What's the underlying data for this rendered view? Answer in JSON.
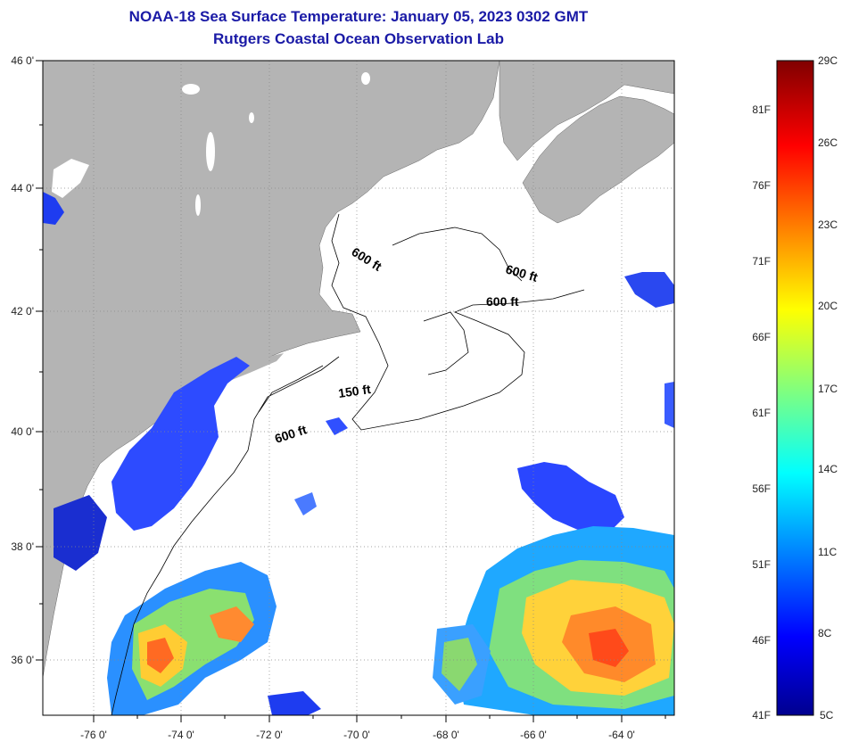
{
  "title": "NOAA-18 Sea Surface Temperature:  January 05, 2023 0302 GMT",
  "subtitle": "Rutgers Coastal Ocean Observation Lab",
  "lon_labels": [
    "-76 0'",
    "-74 0'",
    "-72 0'",
    "-70 0'",
    "-68 0'",
    "-66 0'",
    "-64 0'"
  ],
  "lat_labels": [
    "46 0'",
    "44 0'",
    "42 0'",
    "40 0'",
    "38 0'",
    "36 0'"
  ],
  "contour_labels": {
    "c1": "600 ft",
    "c2": "600 ft",
    "c3": "600 ft",
    "c4": "150 ft",
    "c5": "600 ft"
  },
  "colorbar": {
    "fahrenheit": [
      "81F",
      "76F",
      "71F",
      "66F",
      "61F",
      "56F",
      "51F",
      "46F",
      "41F"
    ],
    "celsius": [
      "29C",
      "26C",
      "23C",
      "20C",
      "17C",
      "14C",
      "11C",
      "8C",
      "5C"
    ]
  },
  "colors": {
    "land": "#b4b4b4",
    "ocean": "#ffffff",
    "title": "#1a1aa6"
  },
  "legend_orientation": "vertical-right"
}
